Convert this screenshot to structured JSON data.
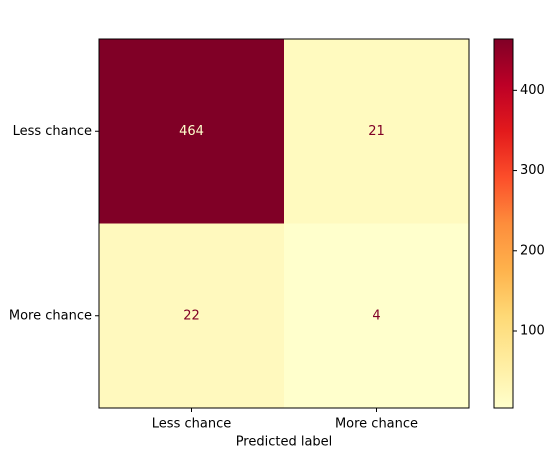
{
  "chart_data": {
    "type": "heatmap",
    "x_categories": [
      "Less chance",
      "More chance"
    ],
    "y_categories": [
      "Less chance",
      "More chance"
    ],
    "values": [
      [
        464,
        21
      ],
      [
        22,
        4
      ]
    ],
    "xlabel": "Predicted label",
    "colormap": "YlOrRd",
    "clim": [
      4,
      464
    ],
    "colorbar_ticks": [
      100,
      200,
      300,
      400
    ]
  }
}
